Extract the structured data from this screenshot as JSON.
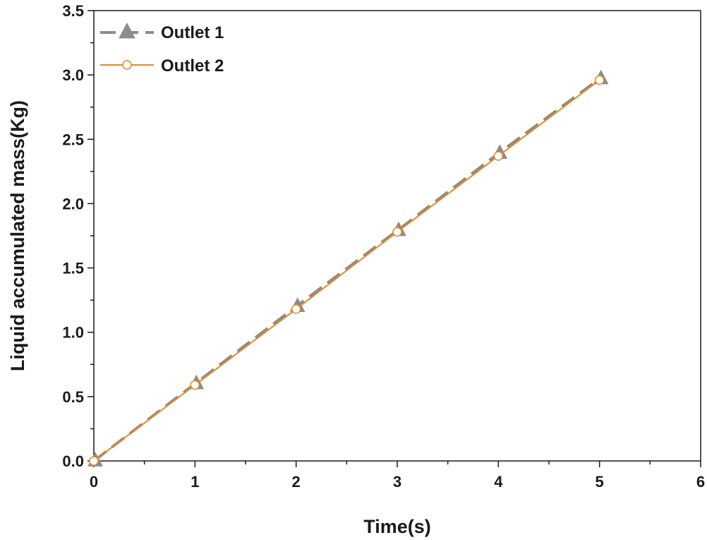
{
  "chart_data": {
    "type": "line",
    "xlabel": "Time(s)",
    "ylabel": "Liquid accumulated mass(Kg)",
    "xlim": [
      0,
      6
    ],
    "ylim": [
      0,
      3.5
    ],
    "x_ticks": [
      "0",
      "1",
      "2",
      "3",
      "4",
      "5",
      "6"
    ],
    "y_ticks": [
      "0.0",
      "0.5",
      "1.0",
      "1.5",
      "2.0",
      "2.5",
      "3.0",
      "3.5"
    ],
    "grid": false,
    "legend_position": "top-left",
    "series": [
      {
        "name": "Outlet 1",
        "x": [
          0,
          1,
          2,
          3,
          4,
          5
        ],
        "y": [
          0.0,
          0.6,
          1.2,
          1.79,
          2.39,
          2.97
        ],
        "color": "#8c8c8c",
        "line_style": "dashed",
        "marker": "triangle"
      },
      {
        "name": "Outlet 2",
        "x": [
          0,
          1,
          2,
          3,
          4,
          5
        ],
        "y": [
          0.0,
          0.59,
          1.18,
          1.78,
          2.37,
          2.96
        ],
        "color": "#e8891f",
        "line_style": "solid",
        "marker": "open-circle"
      }
    ]
  }
}
